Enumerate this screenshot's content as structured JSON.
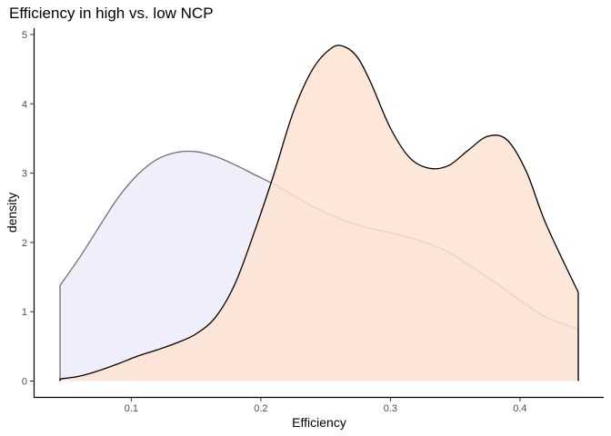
{
  "chart_data": {
    "type": "area",
    "title": "Efficiency in high vs. low NCP",
    "xlabel": "Efficiency",
    "ylabel": "density",
    "xlim": [
      0.045,
      0.445
    ],
    "ylim": [
      0,
      5
    ],
    "x_ticks": [
      0.1,
      0.2,
      0.3,
      0.4
    ],
    "x_tick_labels": [
      "0.1",
      "0.2",
      "0.3",
      "0.4"
    ],
    "y_ticks": [
      0,
      1,
      2,
      3,
      4,
      5
    ],
    "y_tick_labels": [
      "0",
      "1",
      "2",
      "3",
      "4",
      "5"
    ],
    "grid": false,
    "legend": "none",
    "series": [
      {
        "fill": "#ecebfa",
        "line": "#000000",
        "x": [
          0.045,
          0.06,
          0.075,
          0.09,
          0.105,
          0.12,
          0.135,
          0.15,
          0.165,
          0.18,
          0.195,
          0.21,
          0.225,
          0.24,
          0.255,
          0.27,
          0.285,
          0.3,
          0.315,
          0.33,
          0.345,
          0.36,
          0.375,
          0.39,
          0.405,
          0.42,
          0.445
        ],
        "values": [
          1.38,
          1.78,
          2.22,
          2.65,
          2.98,
          3.2,
          3.3,
          3.31,
          3.24,
          3.12,
          2.98,
          2.84,
          2.68,
          2.52,
          2.39,
          2.28,
          2.2,
          2.14,
          2.07,
          1.98,
          1.86,
          1.68,
          1.5,
          1.3,
          1.1,
          0.92,
          0.75
        ]
      },
      {
        "fill": "#fde3d2",
        "line": "#000000",
        "x": [
          0.045,
          0.06,
          0.075,
          0.09,
          0.105,
          0.12,
          0.135,
          0.15,
          0.165,
          0.18,
          0.195,
          0.21,
          0.225,
          0.24,
          0.255,
          0.265,
          0.275,
          0.285,
          0.3,
          0.315,
          0.33,
          0.345,
          0.36,
          0.375,
          0.39,
          0.405,
          0.42,
          0.445
        ],
        "values": [
          0.03,
          0.07,
          0.15,
          0.25,
          0.36,
          0.45,
          0.55,
          0.68,
          0.92,
          1.4,
          2.15,
          2.98,
          3.88,
          4.5,
          4.81,
          4.82,
          4.66,
          4.3,
          3.65,
          3.22,
          3.07,
          3.11,
          3.33,
          3.53,
          3.48,
          3.02,
          2.27,
          1.28
        ]
      }
    ]
  }
}
